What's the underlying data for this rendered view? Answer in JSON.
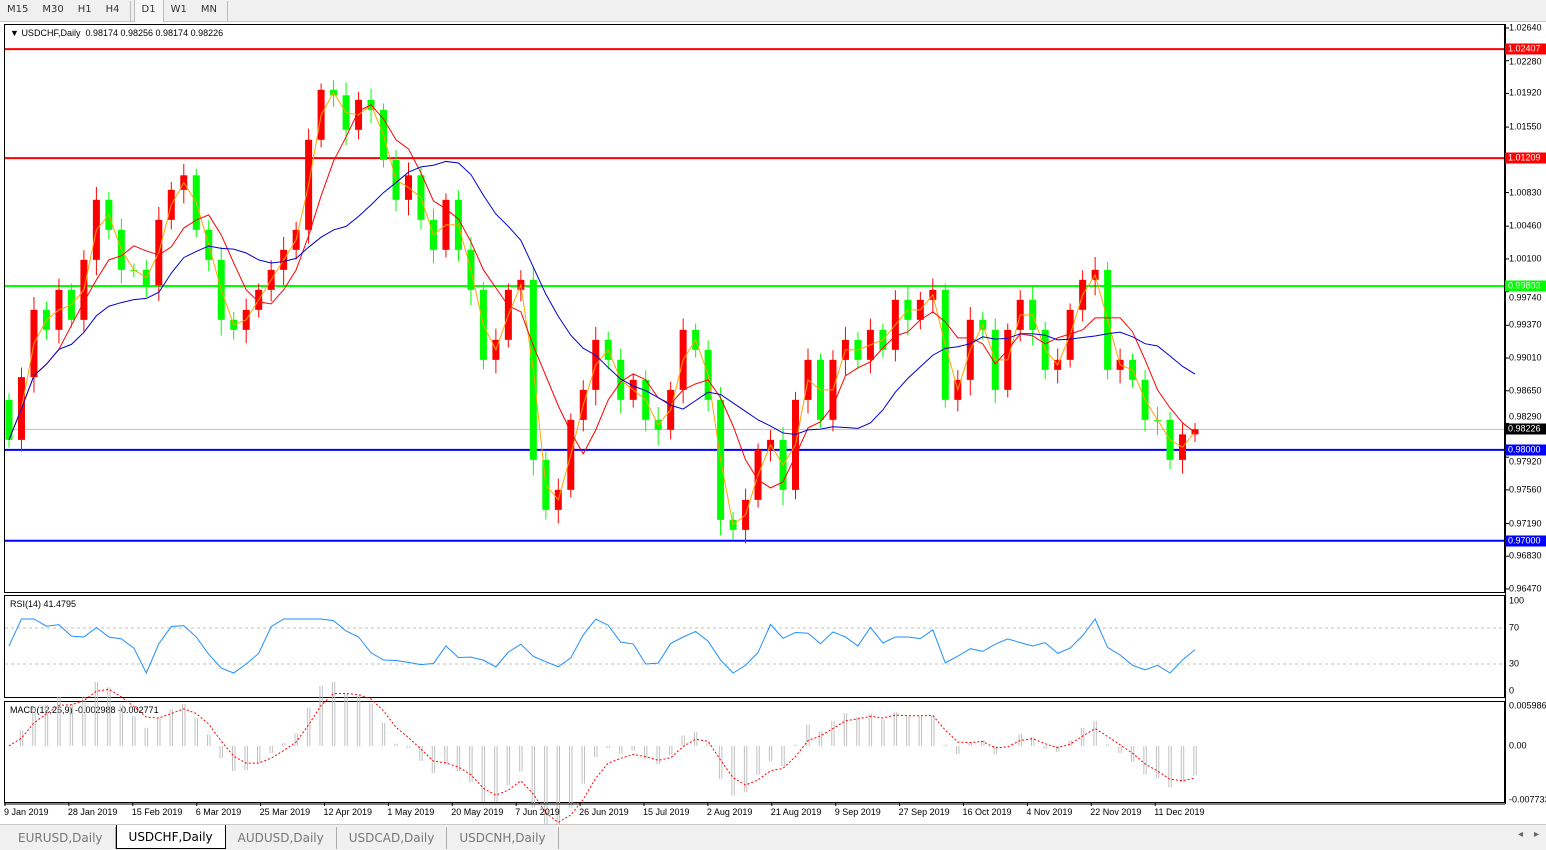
{
  "toolbar": {
    "timeframes": [
      "M15",
      "M30",
      "H1",
      "H4",
      "D1",
      "W1",
      "MN"
    ],
    "active": "D1"
  },
  "main": {
    "title": "USDCHF,Daily",
    "ohlc": "0.98174 0.98256 0.98174 0.98226",
    "price_ticks": [
      "1.02640",
      "1.02280",
      "1.01920",
      "1.01550",
      "1.00830",
      "1.00460",
      "1.00100",
      "0.99740",
      "0.99370",
      "0.99010",
      "0.98650",
      "0.98290",
      "0.97920",
      "0.97560",
      "0.97190",
      "0.96830",
      "0.96470"
    ],
    "current_price": "0.98226",
    "levels": [
      {
        "label": "1.02407",
        "color": "#ff0000"
      },
      {
        "label": "1.01209",
        "color": "#ff0000"
      },
      {
        "label": "0.99803",
        "color": "#00ff00"
      },
      {
        "label": "0.98000",
        "color": "#0000ff"
      },
      {
        "label": "0.97000",
        "color": "#0000ff"
      }
    ]
  },
  "rsi": {
    "title": "RSI(14) 41.4795",
    "ticks": [
      "100",
      "70",
      "30",
      "0"
    ]
  },
  "macd": {
    "title": "MACD(12,26,9) -0.002988 -0.002771",
    "ticks": [
      "0.005986",
      "0.00",
      "-0.007733"
    ]
  },
  "dates": [
    "9 Jan 2019",
    "28 Jan 2019",
    "15 Feb 2019",
    "6 Mar 2019",
    "25 Mar 2019",
    "12 Apr 2019",
    "1 May 2019",
    "20 May 2019",
    "7 Jun 2019",
    "26 Jun 2019",
    "15 Jul 2019",
    "2 Aug 2019",
    "21 Aug 2019",
    "9 Sep 2019",
    "27 Sep 2019",
    "16 Oct 2019",
    "4 Nov 2019",
    "22 Nov 2019",
    "11 Dec 2019"
  ],
  "tabs": [
    {
      "label": "EURUSD,Daily",
      "active": false
    },
    {
      "label": "USDCHF,Daily",
      "active": true
    },
    {
      "label": "AUDUSD,Daily",
      "active": false
    },
    {
      "label": "USDCAD,Daily",
      "active": false
    },
    {
      "label": "USDCNH,Daily",
      "active": false
    }
  ],
  "colors": {
    "bull": "#ff0000",
    "bear": "#00ff00",
    "ma_fast": "#ffa500",
    "ma_mid": "#ff0000",
    "ma_slow": "#0000cc",
    "rsi": "#1e90ff",
    "macd_signal": "#ff0000",
    "macd_hist": "#c0c0c0"
  },
  "chart_data": {
    "type": "candlestick",
    "symbol": "USDCHF",
    "timeframe": "Daily",
    "ylim": [
      0.9647,
      1.0264
    ],
    "x_range": [
      "Jan 2019",
      "Dec 2019"
    ],
    "closes": [
      0.9811,
      0.988,
      0.9954,
      0.9932,
      0.9976,
      0.9943,
      1.0009,
      1.0075,
      1.0042,
      0.9998,
      0.9998,
      0.9981,
      1.0053,
      1.0086,
      1.0102,
      1.0042,
      1.0009,
      0.9943,
      0.9932,
      0.9954,
      0.9976,
      0.9998,
      1.002,
      1.0042,
      1.0141,
      1.0196,
      1.019,
      1.0152,
      1.0185,
      1.0174,
      1.0119,
      1.0075,
      1.0102,
      1.0053,
      1.002,
      1.0075,
      1.002,
      0.9976,
      0.9899,
      0.9921,
      0.9976,
      0.9987,
      0.9789,
      0.9734,
      0.9756,
      0.9833,
      0.9866,
      0.9921,
      0.9899,
      0.9855,
      0.9877,
      0.9833,
      0.9822,
      0.9866,
      0.9932,
      0.991,
      0.9855,
      0.9723,
      0.9712,
      0.9745,
      0.98,
      0.9811,
      0.9756,
      0.9855,
      0.9899,
      0.9833,
      0.9899,
      0.9921,
      0.9899,
      0.9932,
      0.991,
      0.9965,
      0.9943,
      0.9965,
      0.9976,
      0.9855,
      0.9877,
      0.9943,
      0.9932,
      0.9866,
      0.9932,
      0.9965,
      0.9932,
      0.9888,
      0.9899,
      0.9954,
      0.9987,
      0.9998,
      0.9888,
      0.9899,
      0.9877,
      0.9833,
      0.9833,
      0.9789,
      0.9817,
      0.98226
    ],
    "horizontal_levels": [
      1.02407,
      1.01209,
      0.99803,
      0.98,
      0.97
    ],
    "last_price": 0.98226,
    "rsi_levels": [
      70,
      30
    ],
    "rsi_range": [
      0,
      100
    ],
    "macd_range": [
      -0.007733,
      0.005986
    ]
  }
}
